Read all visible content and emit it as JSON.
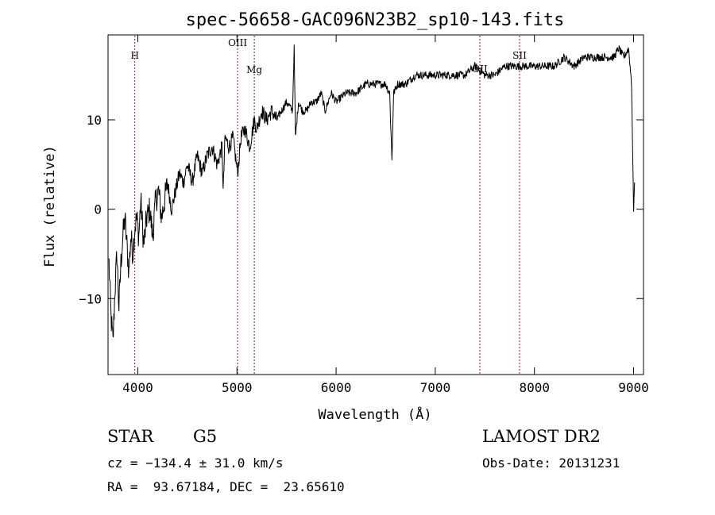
{
  "chart_data": {
    "type": "line",
    "title": "spec-56658-GAC096N23B2_sp10-143.fits",
    "xlabel": "Wavelength (Å)",
    "ylabel": "Flux (relative)",
    "xlim": [
      3700,
      9100
    ],
    "ylim": [
      -18.5,
      19.5
    ],
    "x_ticks": [
      4000,
      5000,
      6000,
      7000,
      8000,
      9000
    ],
    "y_ticks": [
      -10,
      0,
      10
    ],
    "grid": false,
    "line_color": "#000000",
    "marker_color": "#8b1a1a",
    "line_markers": [
      {
        "label": "H",
        "x": 3970
      },
      {
        "label": "OIII",
        "x": 5007
      },
      {
        "label": "Mg",
        "x": 5175
      },
      {
        "label": "OII",
        "x": 7450
      },
      {
        "label": "SII",
        "x": 7850
      }
    ],
    "series": [
      {
        "x": [
          3710,
          3730,
          3750,
          3770,
          3790,
          3810,
          3830,
          3850,
          3870,
          3890,
          3910,
          3930,
          3950,
          3970,
          3990,
          4010,
          4030,
          4060,
          4090,
          4120,
          4150,
          4180,
          4210,
          4240,
          4270,
          4300,
          4340,
          4380,
          4420,
          4460,
          4500,
          4550,
          4600,
          4650,
          4700,
          4750,
          4800,
          4850,
          4861,
          4880,
          4920,
          4960,
          5007,
          5040,
          5080,
          5130,
          5175,
          5200,
          5250,
          5300,
          5350,
          5400,
          5450,
          5500,
          5560,
          5577,
          5590,
          5620,
          5660,
          5700,
          5750,
          5800,
          5850,
          5890,
          5950,
          6000,
          6100,
          6200,
          6300,
          6400,
          6500,
          6540,
          6563,
          6580,
          6620,
          6700,
          6800,
          6900,
          7000,
          7100,
          7200,
          7300,
          7400,
          7500,
          7600,
          7700,
          7800,
          7900,
          8000,
          8100,
          8200,
          8300,
          8400,
          8500,
          8600,
          8700,
          8800,
          8850,
          8900,
          8950,
          8980,
          9000,
          9010
        ],
        "values": [
          -6,
          -12,
          -15,
          -9,
          -5,
          -11,
          -6,
          -3,
          -1,
          -4,
          -7,
          -3,
          -5,
          -2,
          -1,
          -3,
          1,
          -4,
          -1,
          0,
          -3,
          1,
          2,
          -1,
          1,
          3,
          0,
          2,
          4,
          3,
          5,
          3,
          6,
          4,
          6,
          7,
          5,
          7,
          2,
          8,
          7,
          8,
          4,
          8,
          9,
          7,
          10,
          9,
          11,
          10,
          11,
          10,
          11,
          12,
          11,
          18,
          8,
          12,
          11,
          11,
          12,
          12,
          13,
          11,
          13,
          12,
          13,
          13,
          14,
          14,
          14,
          13,
          5.5,
          13,
          14,
          14,
          15,
          15,
          15,
          15,
          15,
          15,
          16,
          15,
          15,
          16,
          16,
          16,
          16,
          16,
          16,
          17,
          16,
          17,
          17,
          17,
          17,
          18,
          17,
          18,
          14,
          0,
          3
        ]
      }
    ]
  },
  "info": {
    "object_type": "STAR",
    "object_class": "G5",
    "survey": "LAMOST DR2",
    "cz_line": "cz = −134.4 ± 31.0 km/s",
    "obs_date": "Obs-Date: 20131231",
    "radec": "RA =  93.67184, DEC =  23.65610"
  }
}
